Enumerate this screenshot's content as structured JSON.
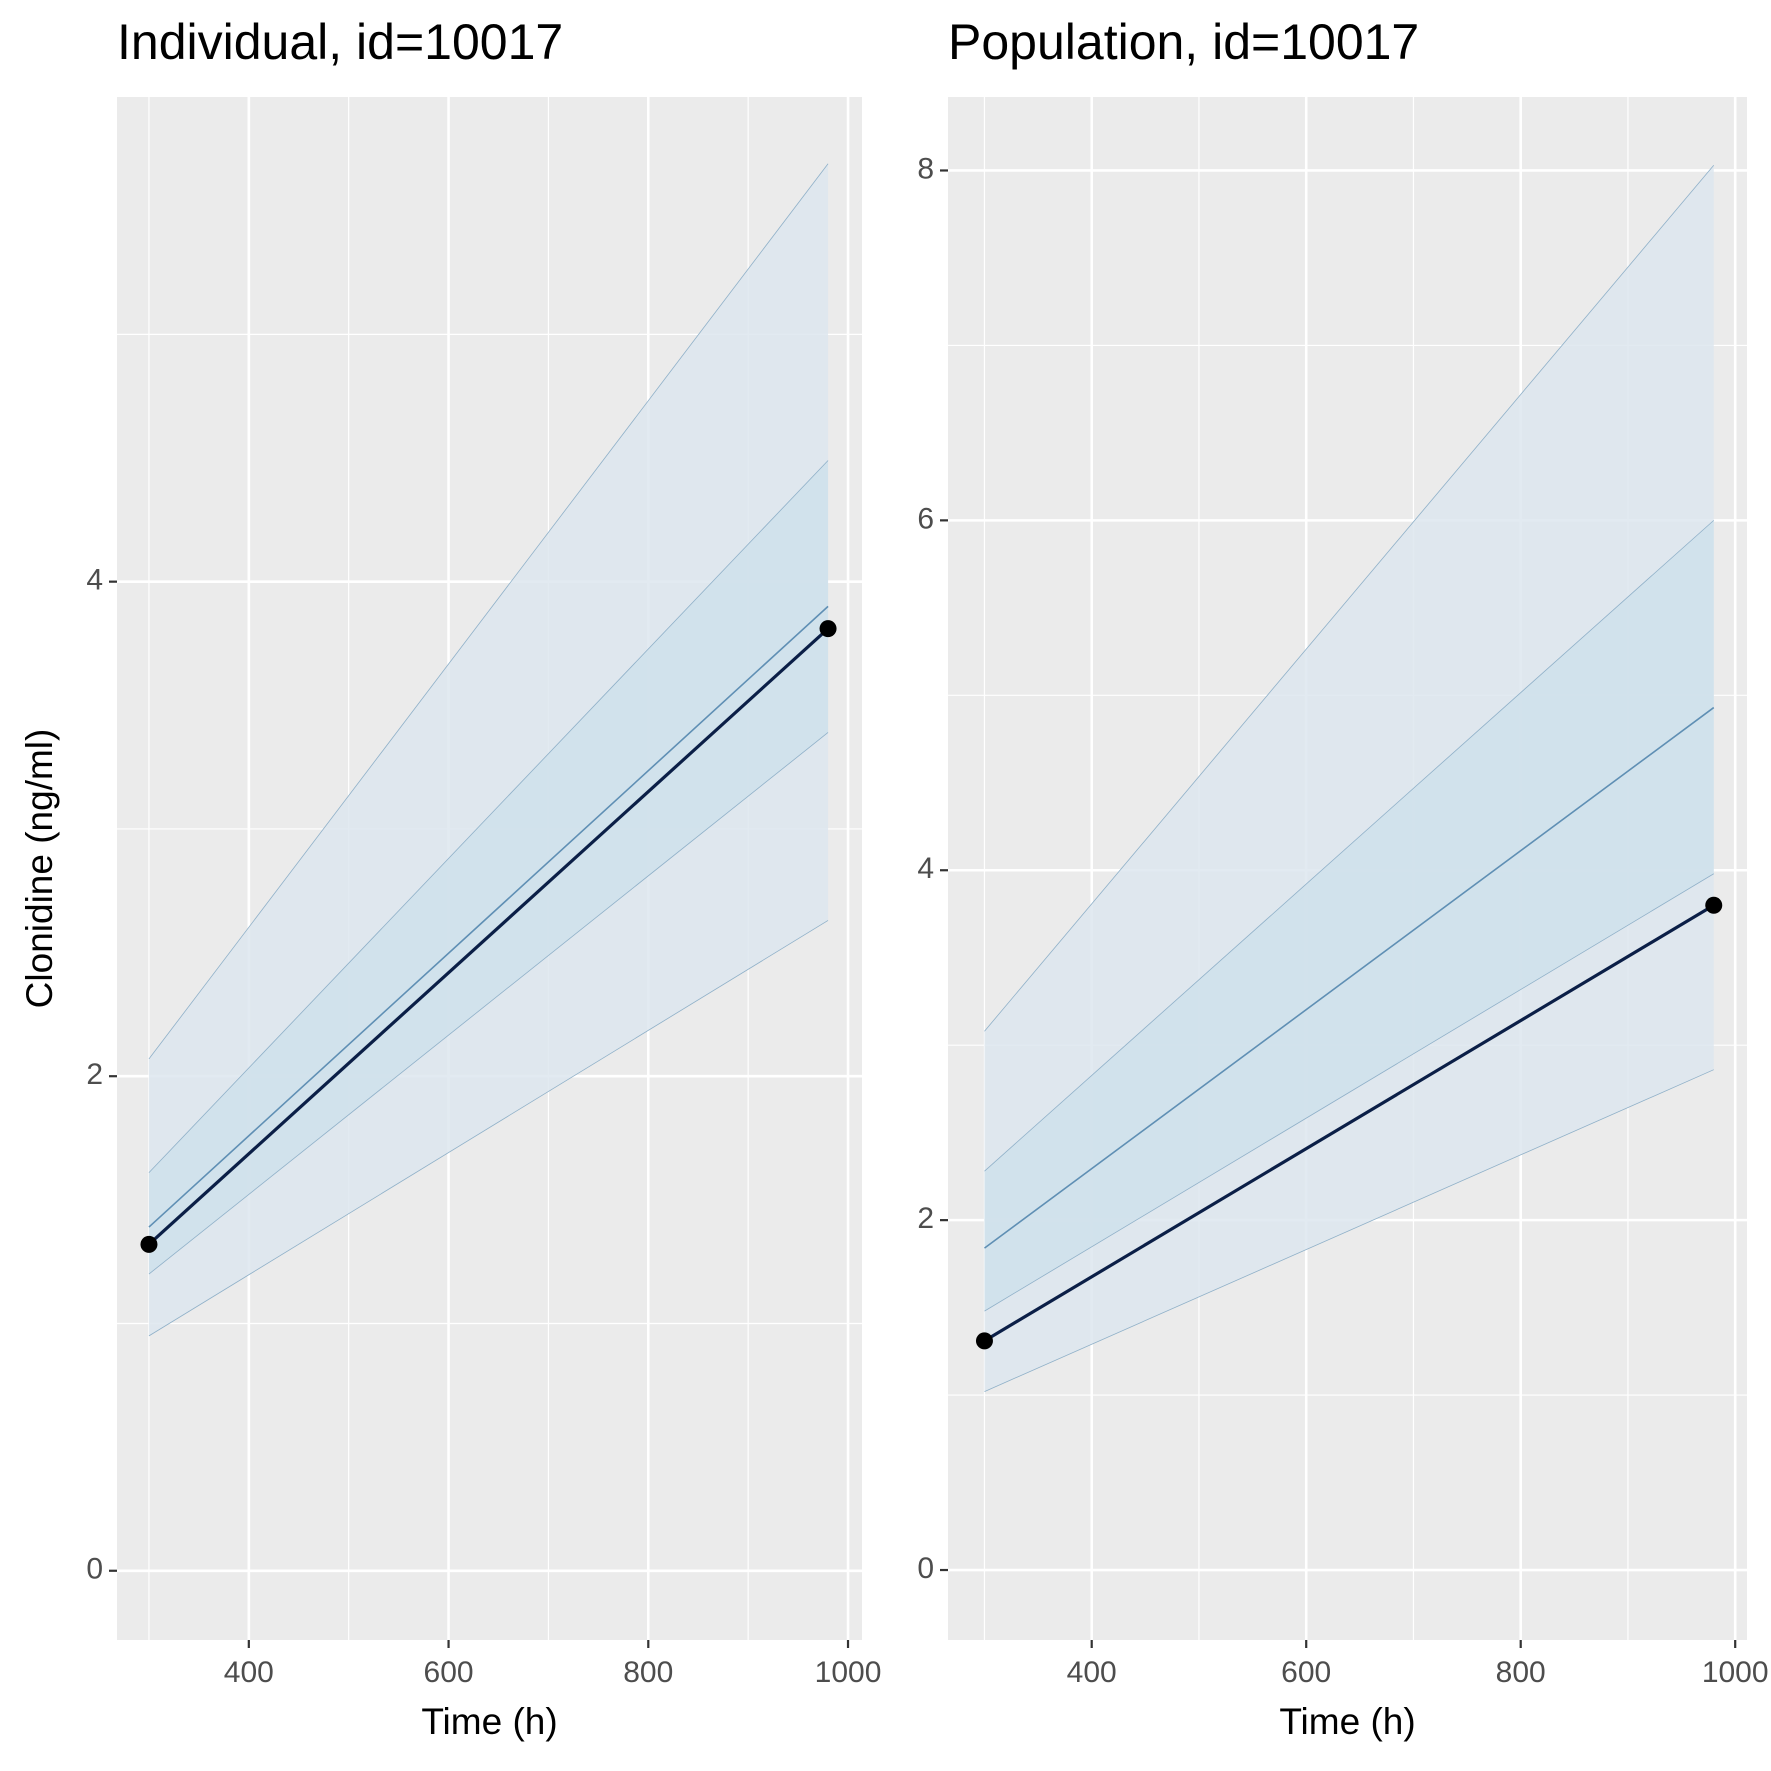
{
  "chart_data": [
    {
      "type": "line",
      "title": "Individual, id=10017",
      "x_label": "Time (h)",
      "y_label": "Clonidine (ng/ml)",
      "x": [
        300,
        980
      ],
      "xlim": [
        268,
        1014
      ],
      "ylim": [
        -0.28,
        5.96
      ],
      "xticks": [
        400,
        600,
        800,
        1000
      ],
      "yticks": [
        0,
        2,
        4
      ],
      "x_minor_grid": [
        300,
        500,
        700,
        900
      ],
      "y_minor_grid": [
        1,
        3,
        5
      ],
      "bands": [
        {
          "color": "#dde6ee",
          "lower": [
            0.95,
            2.63
          ],
          "upper": [
            2.07,
            5.69
          ]
        },
        {
          "color": "#cfe0eb",
          "lower": [
            1.2,
            3.39
          ],
          "upper": [
            1.61,
            4.49
          ]
        }
      ],
      "series": [
        {
          "color": "#5f8fb4",
          "values": [
            1.39,
            3.9
          ]
        },
        {
          "color": "#0b1f47",
          "values": [
            1.32,
            3.81
          ],
          "points": "#000000"
        }
      ]
    },
    {
      "type": "line",
      "title": "Population, id=10017",
      "x_label": "Time (h)",
      "x": [
        300,
        980
      ],
      "xlim": [
        266,
        1011
      ],
      "ylim": [
        -0.4,
        8.42
      ],
      "xticks": [
        400,
        600,
        800,
        1000
      ],
      "yticks": [
        0,
        2,
        4,
        6,
        8
      ],
      "x_minor_grid": [
        300,
        500,
        700,
        900
      ],
      "y_minor_grid": [
        1,
        3,
        5,
        7
      ],
      "bands": [
        {
          "color": "#dde6ee",
          "lower": [
            1.02,
            2.86
          ],
          "upper": [
            3.08,
            8.03
          ]
        },
        {
          "color": "#cfe0eb",
          "lower": [
            1.48,
            3.98
          ],
          "upper": [
            2.28,
            6.0
          ]
        }
      ],
      "series": [
        {
          "color": "#5f8fb4",
          "values": [
            1.84,
            4.93
          ]
        },
        {
          "color": "#0b1f47",
          "values": [
            1.31,
            3.8
          ],
          "points": "#000000"
        }
      ]
    }
  ]
}
